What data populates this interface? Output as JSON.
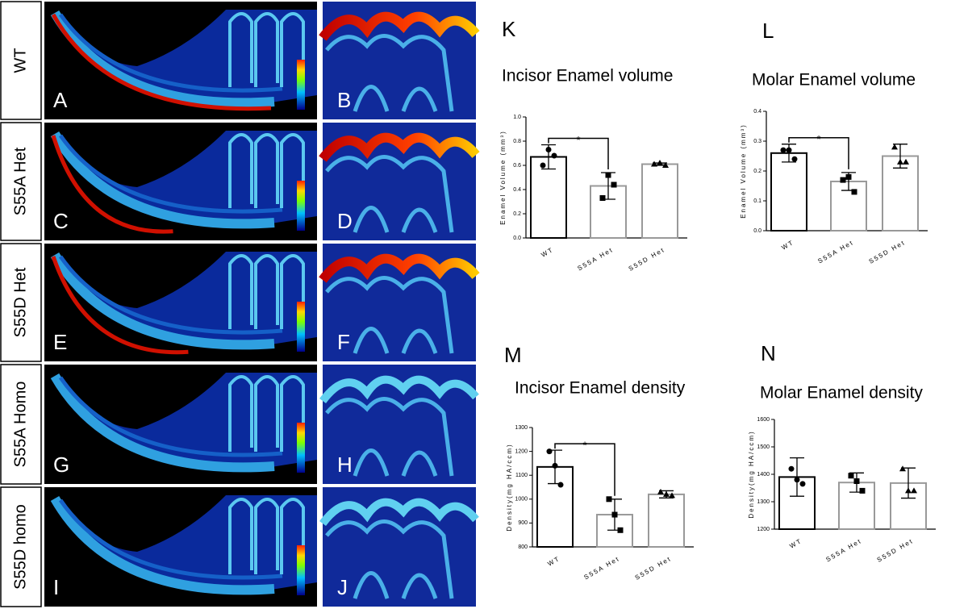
{
  "panels": {
    "rows": [
      "WT",
      "S55A Het",
      "S55D Het",
      "S55A Homo",
      "S55D homo"
    ],
    "letters": [
      [
        "A",
        "B"
      ],
      [
        "C",
        "D"
      ],
      [
        "E",
        "F"
      ],
      [
        "G",
        "H"
      ],
      [
        "I",
        "J"
      ]
    ]
  },
  "chart_data": [
    {
      "type": "bar",
      "letter": "K",
      "title": "Incisor Enamel volume",
      "y_label": "Enamel Volume (mm³)",
      "categories": [
        "WT",
        "S55A Het",
        "S55D Het"
      ],
      "colors": [
        "#000000",
        "#999999",
        "#999999"
      ],
      "markers": [
        "circle",
        "square",
        "triangle"
      ],
      "values": [
        0.67,
        0.43,
        0.61
      ],
      "errors": [
        0.1,
        0.11,
        0.01
      ],
      "points": [
        [
          0.6,
          0.73,
          0.68
        ],
        [
          0.33,
          0.52,
          0.44
        ],
        [
          0.61,
          0.62,
          0.6
        ]
      ],
      "significance": {
        "label": "*",
        "pair": [
          "WT",
          "S55A Het"
        ]
      },
      "ylim": [
        0,
        1.0
      ],
      "yticks": [
        {
          "value": 0,
          "label": "0.0"
        },
        0.2,
        0.4,
        0.6,
        0.8,
        {
          "value": 1.0,
          "label": "1.0"
        }
      ]
    },
    {
      "type": "bar",
      "letter": "L",
      "title": "Molar Enamel volume",
      "y_label": "Enamel Volume (mm³)",
      "categories": [
        "WT",
        "S55A Het",
        "S55D Het"
      ],
      "colors": [
        "#000000",
        "#999999",
        "#999999"
      ],
      "markers": [
        "circle",
        "square",
        "triangle"
      ],
      "values": [
        0.26,
        0.165,
        0.25
      ],
      "errors": [
        0.03,
        0.03,
        0.04
      ],
      "points": [
        [
          0.27,
          0.27,
          0.24
        ],
        [
          0.17,
          0.18,
          0.13
        ],
        [
          0.28,
          0.23,
          0.23
        ]
      ],
      "significance": {
        "label": "*",
        "pair": [
          "WT",
          "S55A Het"
        ]
      },
      "ylim": [
        0,
        0.4
      ],
      "yticks": [
        {
          "value": 0,
          "label": "0.0"
        },
        0.1,
        0.2,
        0.3,
        0.4
      ]
    },
    {
      "type": "bar",
      "letter": "M",
      "title": "Incisor Enamel density",
      "y_label": "Density(mg HA/ccm)",
      "categories": [
        "WT",
        "S55A Het",
        "S55D Het"
      ],
      "colors": [
        "#000000",
        "#999999",
        "#999999"
      ],
      "markers": [
        "circle",
        "square",
        "triangle"
      ],
      "values": [
        1135,
        935,
        1020
      ],
      "errors": [
        70,
        65,
        15
      ],
      "points": [
        [
          1200,
          1140,
          1060
        ],
        [
          1000,
          935,
          870
        ],
        [
          1030,
          1020,
          1015
        ]
      ],
      "significance": {
        "label": "*",
        "pair": [
          "WT",
          "S55A Het"
        ]
      },
      "ylim": [
        800,
        1300
      ],
      "yticks": [
        800,
        900,
        1000,
        1100,
        1200,
        1300
      ]
    },
    {
      "type": "bar",
      "letter": "N",
      "title": "Molar Enamel density",
      "y_label": "Density(mg HA/ccm)",
      "categories": [
        "WT",
        "S55A Het",
        "S55D Het"
      ],
      "colors": [
        "#000000",
        "#999999",
        "#999999"
      ],
      "markers": [
        "circle",
        "square",
        "triangle"
      ],
      "values": [
        1390,
        1370,
        1368
      ],
      "errors": [
        70,
        35,
        55
      ],
      "points": [
        [
          1420,
          1380,
          1365
        ],
        [
          1395,
          1375,
          1340
        ],
        [
          1420,
          1340,
          1340
        ]
      ],
      "ylim": [
        1200,
        1600
      ],
      "yticks": [
        1200,
        1300,
        1400,
        1500,
        1600
      ]
    }
  ]
}
